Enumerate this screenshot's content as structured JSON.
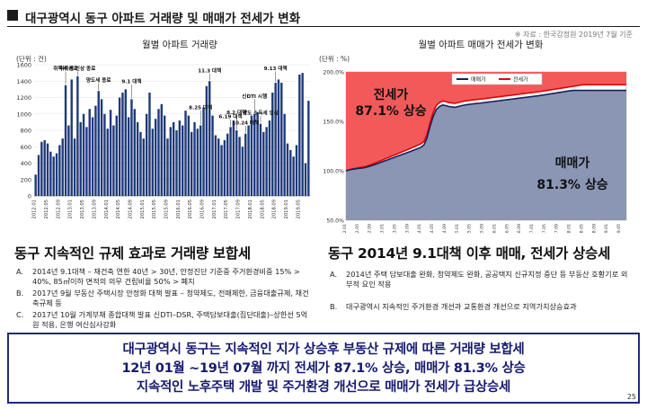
{
  "header": {
    "title": "대구광역시 동구 아파트 거래량 및 매매가 전세가 변화",
    "source": "※ 자료 : 한국감정원 2019년 7월 기준"
  },
  "left_chart": {
    "title": "월별 아파트 거래량",
    "unit": "(단위 : 건)",
    "color": "#1f3a7a",
    "annotations": [
      {
        "label": "취득세 인상 종료",
        "index": 14
      },
      {
        "label": "취득세 종료",
        "index": 10
      },
      {
        "label": "양도세 종료",
        "index": 21
      },
      {
        "label": "9.1 대책",
        "index": 32
      },
      {
        "label": "11.3 대책",
        "index": 58
      },
      {
        "label": "8.25 대책",
        "index": 55
      },
      {
        "label": "6.19 대책",
        "index": 65
      },
      {
        "label": "8.2 대책",
        "index": 67
      },
      {
        "label": "10.24 대책",
        "index": 70
      },
      {
        "label": "신DTI 시행",
        "index": 73
      },
      {
        "label": "양도 소득세 인상",
        "index": 75
      },
      {
        "label": "9.13 대책",
        "index": 80
      }
    ]
  },
  "right_chart": {
    "title": "월별 아파트 매매가 전세가 변화",
    "unit": "(단위 : %)",
    "legend": {
      "sale": "매매가",
      "jeonse": "전세가"
    },
    "overlay_jeonse": "전세가",
    "overlay_jeonse_pct": "87.1% 상승",
    "overlay_sale": "매매가",
    "overlay_sale_pct": "81.3% 상승",
    "colors": {
      "sale": "#8a96b4",
      "jeonse": "#f25a5a",
      "sale_line": "#14215c",
      "jeonse_line": "#e80000"
    }
  },
  "chart_data": [
    {
      "type": "bar",
      "title": "월별 아파트 거래량",
      "ylabel": "(단위 : 건)",
      "ylim": [
        0,
        1600
      ],
      "yticks": [
        0,
        200,
        400,
        600,
        800,
        1000,
        1200,
        1400,
        1600
      ],
      "x_tick_labels": [
        "2012.01",
        "2012.05",
        "2012.09",
        "2013.01",
        "2013.05",
        "2013.09",
        "2014.01",
        "2014.05",
        "2014.09",
        "2015.01",
        "2015.05",
        "2015.09",
        "2016.01",
        "2016.05",
        "2016.09",
        "2017.01",
        "2017.05",
        "2017.09",
        "2018.01",
        "2018.05",
        "2018.09",
        "2019.01",
        "2019.05"
      ],
      "values": [
        260,
        500,
        660,
        680,
        640,
        540,
        480,
        520,
        620,
        700,
        1350,
        860,
        1420,
        700,
        1460,
        900,
        1000,
        840,
        1060,
        960,
        1100,
        1280,
        1180,
        1000,
        820,
        1050,
        860,
        980,
        1200,
        1260,
        1300,
        960,
        1180,
        1060,
        900,
        780,
        700,
        1000,
        1260,
        820,
        940,
        1060,
        1120,
        980,
        700,
        840,
        900,
        800,
        920,
        860,
        1040,
        980,
        780,
        900,
        820,
        860,
        1080,
        1340,
        1400,
        980,
        740,
        700,
        620,
        680,
        760,
        840,
        920,
        800,
        720,
        600,
        760,
        860,
        980,
        1000,
        1020,
        880,
        780,
        840,
        920,
        1260,
        1380,
        1420,
        1380,
        1000,
        640,
        560,
        480,
        620,
        1480,
        1500,
        400,
        1160
      ]
    },
    {
      "type": "area",
      "title": "월별 아파트 매매가 전세가 변화",
      "ylabel": "(단위 : %)",
      "ylim": [
        50,
        200
      ],
      "yticks": [
        "50.0%",
        "100.0%",
        "150.0%",
        "200.0%"
      ],
      "series": [
        {
          "name": "매매가",
          "values": [
            100.0,
            100.8,
            101.5,
            101.9,
            102.4,
            102.7,
            103.2,
            104.0,
            105.0,
            106.0,
            107.2,
            108.3,
            109.5,
            110.6,
            111.8,
            113.0,
            114.2,
            115.3,
            116.5,
            117.6,
            118.7,
            119.9,
            121.2,
            122.4,
            123.7,
            126.0,
            133.0,
            145.0,
            155.0,
            162.0,
            165.0,
            166.5,
            166.0,
            165.0,
            164.6,
            164.2,
            165.0,
            165.8,
            166.5,
            167.0,
            167.4,
            167.8,
            168.1,
            168.4,
            168.8,
            169.2,
            169.6,
            170.0,
            170.4,
            170.8,
            171.2,
            171.6,
            172.0,
            172.4,
            172.8,
            173.2,
            173.6,
            174.0,
            174.4,
            174.8,
            175.2,
            175.6,
            176.0,
            176.5,
            177.0,
            177.5,
            178.0,
            178.5,
            179.0,
            179.5,
            180.0,
            180.5,
            181.0,
            181.3,
            181.3,
            181.3,
            181.3,
            181.3,
            181.3,
            181.3,
            181.3,
            181.3,
            181.3,
            181.3,
            181.3,
            181.3,
            181.3,
            181.3,
            181.3,
            181.3,
            181.3
          ]
        },
        {
          "name": "전세가",
          "values": [
            100.0,
            101.0,
            101.9,
            102.5,
            103.1,
            103.6,
            104.2,
            105.1,
            106.2,
            107.4,
            108.7,
            110.0,
            111.3,
            112.6,
            113.9,
            115.2,
            116.5,
            117.8,
            119.1,
            120.4,
            121.7,
            123.0,
            124.4,
            125.8,
            127.2,
            129.6,
            136.8,
            148.9,
            159.0,
            166.0,
            169.0,
            170.5,
            170.0,
            169.0,
            168.6,
            168.2,
            169.0,
            169.8,
            170.5,
            171.0,
            171.4,
            171.8,
            172.1,
            172.4,
            172.8,
            173.2,
            173.6,
            174.0,
            174.4,
            174.8,
            175.2,
            175.6,
            176.0,
            176.4,
            176.8,
            177.2,
            177.6,
            178.0,
            178.4,
            178.8,
            179.2,
            179.6,
            180.0,
            180.5,
            181.0,
            181.5,
            182.0,
            182.5,
            183.0,
            183.5,
            184.0,
            184.5,
            185.0,
            185.5,
            186.0,
            186.5,
            187.0,
            187.1,
            187.1,
            187.1,
            187.1,
            187.1,
            187.1,
            187.1,
            187.1,
            187.1,
            187.1,
            187.1,
            187.1,
            187.1,
            187.1
          ]
        }
      ]
    }
  ],
  "left_section": {
    "headline": "동구 지속적인 규제 효과로 거래량 보합세",
    "notes": [
      {
        "letter": "A.",
        "text": "2014년 9.1대책 – 재건축 연한 40년 > 30년, 안정진단 기준중 주거환경비중 15% > 40%, 85㎡이하 면적의 의무 건립비율 50% > 폐지"
      },
      {
        "letter": "B.",
        "text": "2017년 9월 부동산 주택시장 안정화 대책 발표 – 청약제도, 전매제한, 금융대출규제, 재건축규제 등"
      },
      {
        "letter": "C.",
        "text": "2017년 10월 가계부채 종합대책 발표 신DTI–DSR, 주택담보대출(집단대출)–상한선 5억원 적용, 은행 여신심사강화"
      }
    ]
  },
  "right_section": {
    "headline": "동구 2014년 9.1대책 이후 매매, 전세가 상승세",
    "notes": [
      {
        "letter": "A.",
        "text": "2014년 주택 담보대출 완화, 청약제도 완화, 공공택지 신규지정 중단 등 부동산 호황기로 외부적 요인 작용"
      },
      {
        "letter": "B.",
        "text": "대구광역시 지속적인 주거환경 개선과 교통환경 개선으로 지역가치상승효과"
      }
    ]
  },
  "summary": {
    "line1": "대구광역시 동구는 지속적인 지가 상승후 부동산 규제에 따른 거래량 보합세",
    "line2": "12년 01월 ~19년 07월 까지 전세가 87.1% 상승, 매매가 81.3% 상승",
    "line3": "지속적인 노후주택 개발 및 주거환경 개선으로  매매가 전세가 급상승세"
  },
  "page_number": "25"
}
